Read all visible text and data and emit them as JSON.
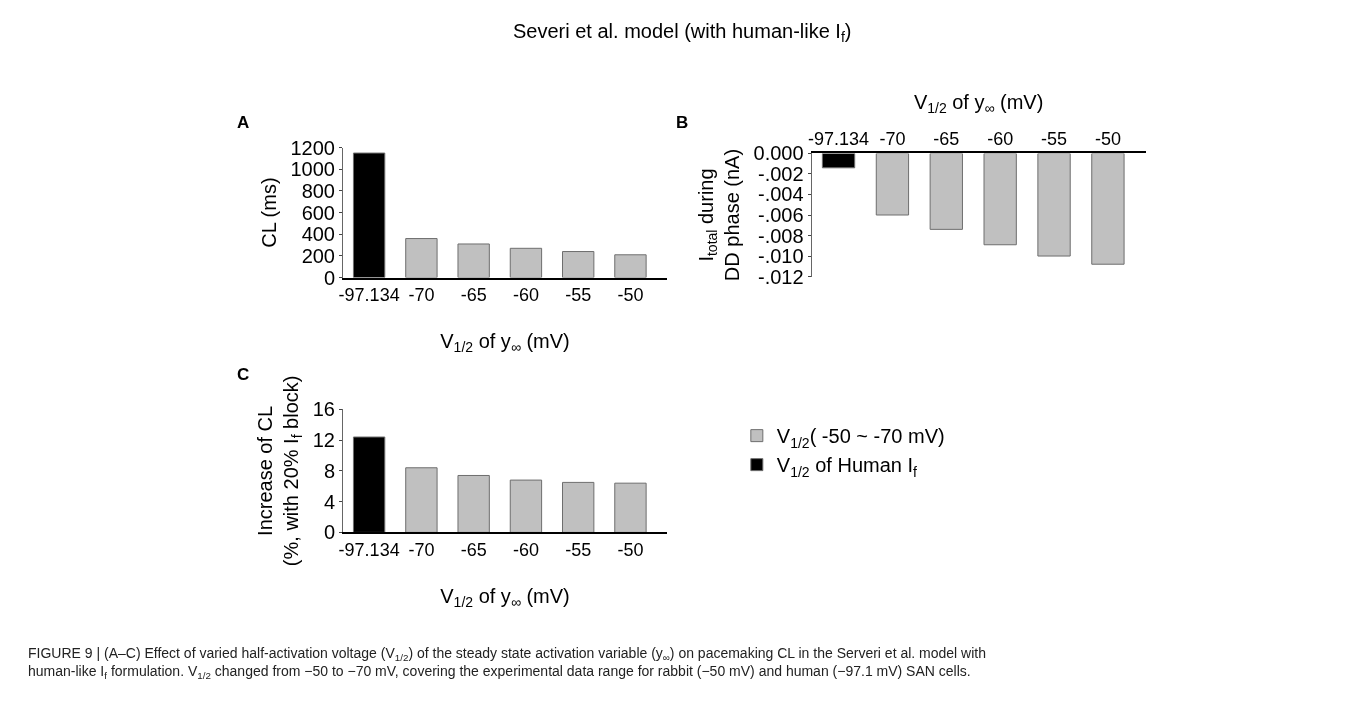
{
  "chart_data": [
    {
      "type": "bar",
      "title": "Severi et al. model (with human-like I$_{f}$)",
      "categories": [
        "-97.134",
        "-70",
        "-65",
        "-60",
        "-55",
        "-50"
      ],
      "xlabel": "V$_{1/2}$ of y$_{∞}$ (mV)",
      "ylabel": "CL (ms)",
      "series": [
        {
          "color": "#c0c0c0",
          "values": [
            null,
            360,
            310,
            270,
            240,
            210
          ]
        },
        {
          "color": "#000000",
          "values": [
            1150,
            null,
            null,
            null,
            null,
            null
          ]
        }
      ],
      "ylim": [
        0,
        1200
      ],
      "yticks": [
        0,
        200,
        400,
        600,
        800,
        1000,
        1200
      ],
      "annotations": [
        "A"
      ],
      "legend": false
    },
    {
      "type": "bar",
      "categories": [
        "-97.134",
        "-70",
        "-65",
        "-60",
        "-55",
        "-50"
      ],
      "xlabel": "V$_{1/2}$ of y$_{∞}$ (mV)",
      "ylabel": "I$_{total}$ during\nDD phase (nA)",
      "series": [
        {
          "color": "#c0c0c0",
          "values": [
            null,
            -0.006,
            -0.0074,
            -0.0089,
            -0.01,
            -0.0108
          ]
        },
        {
          "color": "#000000",
          "values": [
            -0.0014,
            null,
            null,
            null,
            null,
            null
          ]
        }
      ],
      "ylim": [
        -0.012,
        0
      ],
      "yticks": [
        {
          "value": 0,
          "label": "0.000"
        },
        {
          "value": -0.002,
          "label": "-.002"
        },
        {
          "value": -0.004,
          "label": "-.004"
        },
        {
          "value": -0.006,
          "label": "-.006"
        },
        {
          "value": -0.008,
          "label": "-.008"
        },
        {
          "value": -0.01,
          "label": "-.010"
        },
        {
          "value": -0.012,
          "label": "-.012"
        }
      ],
      "annotations": [
        "B"
      ],
      "legend": false
    },
    {
      "type": "bar",
      "categories": [
        "-97.134",
        "-70",
        "-65",
        "-60",
        "-55",
        "-50"
      ],
      "xlabel": "V$_{1/2}$ of y$_{∞}$ (mV)",
      "ylabel": "Increase of CL\n(%, with 20% I$_{f}$ block)",
      "series": [
        {
          "name": "V$_{1/2}$( -50 ~ -70 mV)",
          "color": "#c0c0c0",
          "values": [
            null,
            8.4,
            7.4,
            6.8,
            6.5,
            6.4
          ]
        },
        {
          "name": "V$_{1/2}$ of Human I$_{f}$",
          "color": "#000000",
          "values": [
            12.4,
            null,
            null,
            null,
            null,
            null
          ]
        }
      ],
      "ylim": [
        0,
        16
      ],
      "yticks": [
        0,
        4,
        8,
        12,
        16
      ],
      "annotations": [
        "C",
        "FIGURE 9 | (A–C) Effect of varied half-activation voltage (V$_{1/2}$) of the steady state activation variable (y$_{∞}$) on pacemaking CL in the Serveri et al. model with human-like I$_{f}$ formulation. V$_{1/2}$ changed from −50 to −70 mV, covering the experimental data range for rabbit (−50 mV) and human (−97.1 mV) SAN cells."
      ],
      "legend": "right"
    }
  ]
}
